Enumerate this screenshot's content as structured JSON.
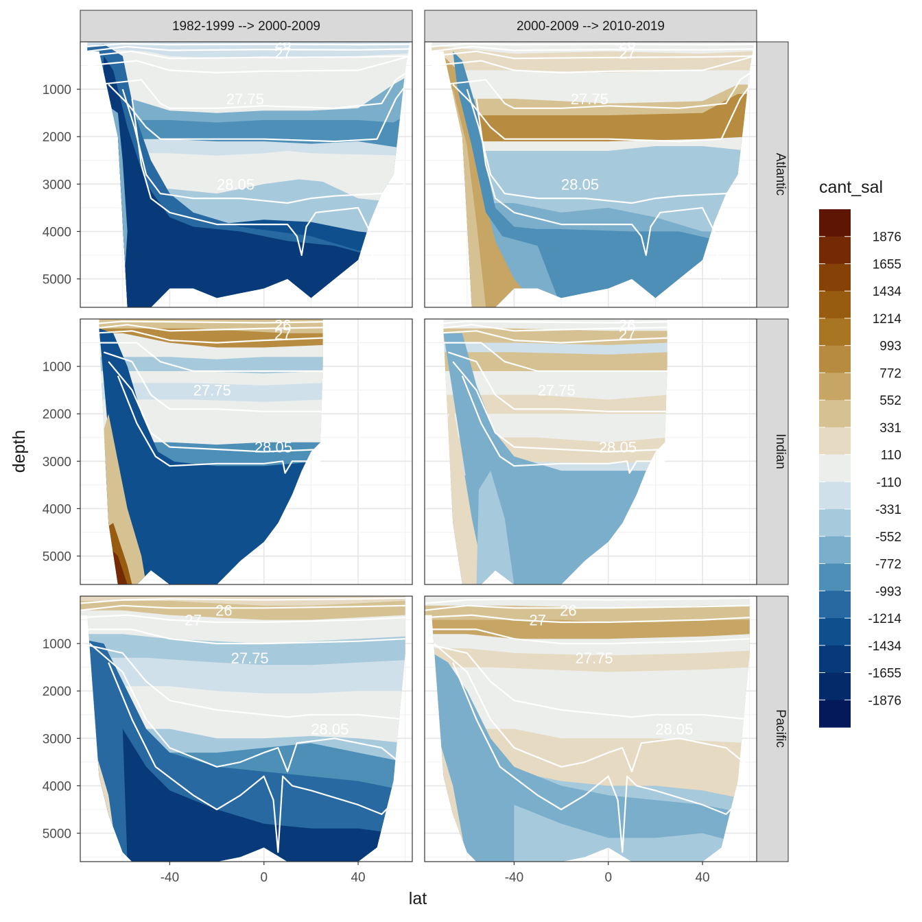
{
  "chart_data": {
    "type": "heatmap",
    "subtype": "faceted filled-contour sections with isopycnal contour lines",
    "xlabel": "lat",
    "ylabel": "depth",
    "x_ticks": [
      -40,
      0,
      40
    ],
    "y_ticks": [
      1000,
      2000,
      3000,
      4000,
      5000
    ],
    "y_reversed": true,
    "xlim": [
      -78,
      63
    ],
    "ylim": [
      0,
      5600
    ],
    "grid": true,
    "legend_position": "right",
    "legend_title": "cant_sal",
    "facet_columns": [
      "1982-1999 --> 2000-2009",
      "2000-2009 --> 2010-2019"
    ],
    "facet_rows": [
      "Atlantic",
      "Indian",
      "Pacific"
    ],
    "color_scale": {
      "labels": [
        "1876",
        "1655",
        "1434",
        "1214",
        "993",
        "772",
        "552",
        "331",
        "110",
        "-110",
        "-331",
        "-552",
        "-772",
        "-993",
        "-1214",
        "-1434",
        "-1655",
        "-1876"
      ],
      "colors": [
        "#5e1503",
        "#742a05",
        "#864106",
        "#985c10",
        "#a87523",
        "#b78c40",
        "#c6a565",
        "#d6c193",
        "#e6dac3",
        "#eceeec",
        "#cfe0ea",
        "#a7c9dc",
        "#7aaecb",
        "#4d8fb7",
        "#2769a0",
        "#0f4f8e",
        "#083a7a",
        "#052a69",
        "#03195a"
      ]
    },
    "isopycnal_labels": {
      "Atlantic": [
        "26",
        "27",
        "27.75",
        "28.05"
      ],
      "Indian": [
        "26",
        "27",
        "27.75",
        "28.05"
      ],
      "Pacific": [
        "26",
        "27",
        "27.75",
        "28.05"
      ]
    }
  }
}
